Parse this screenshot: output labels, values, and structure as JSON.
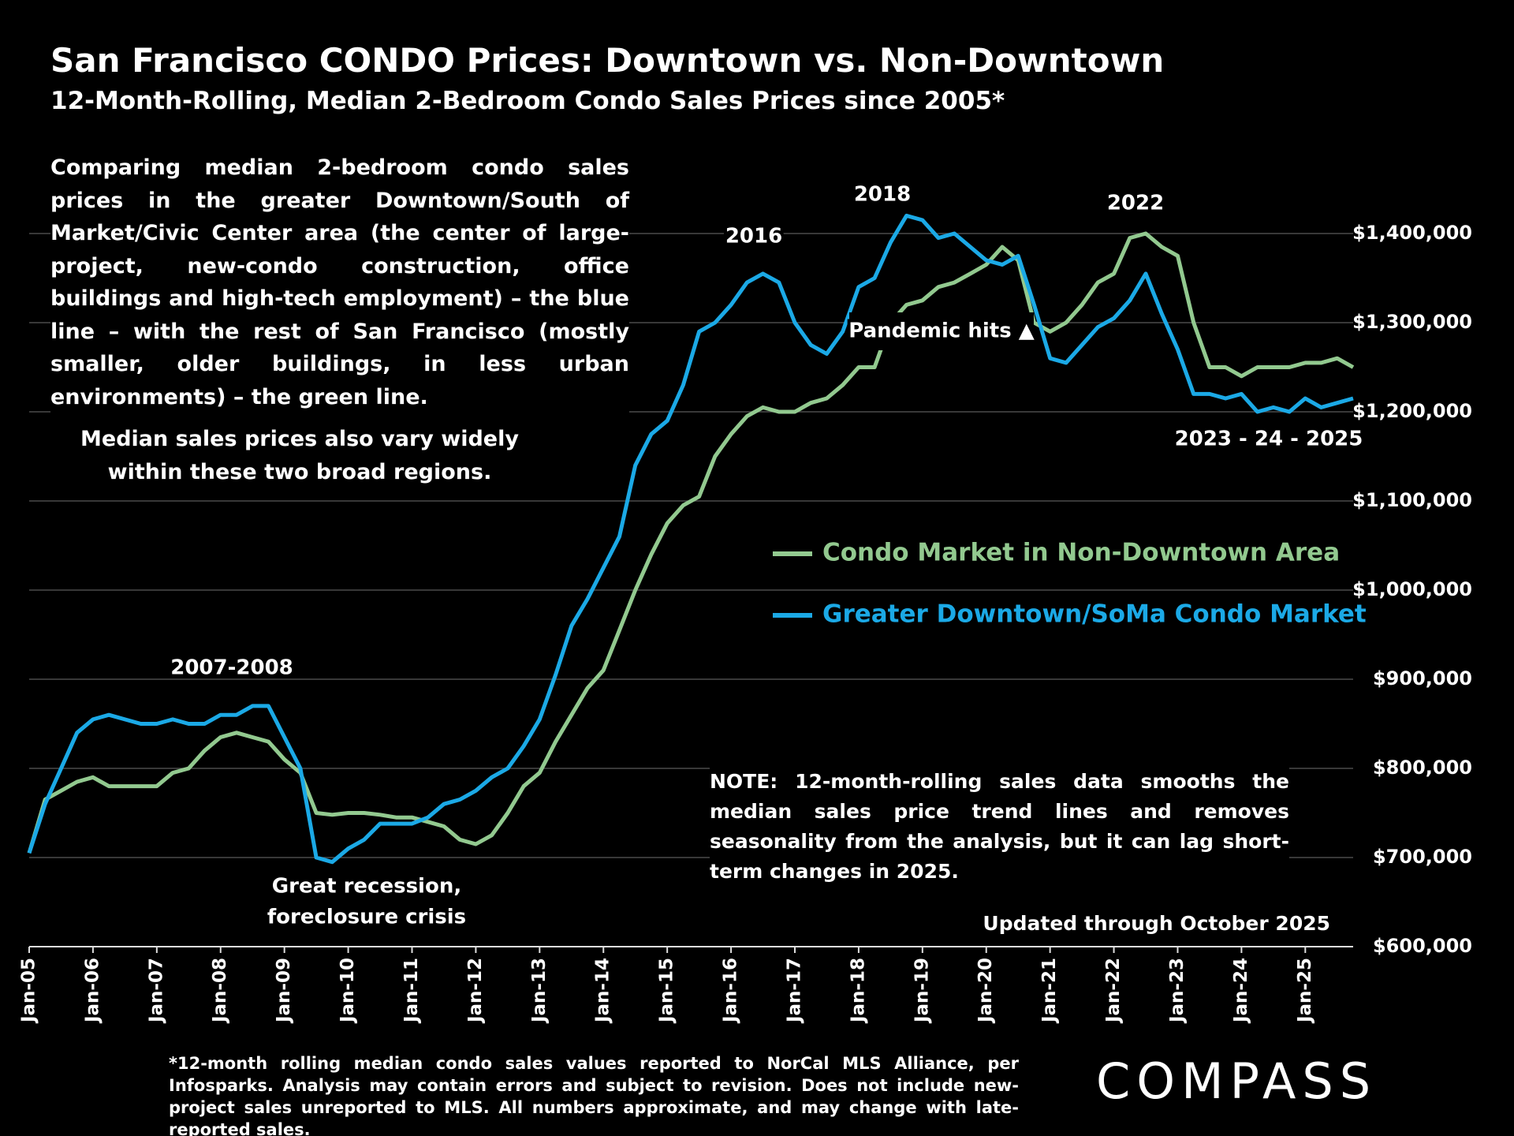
{
  "title": "San Francisco CONDO Prices: Downtown vs. Non-Downtown",
  "subtitle": "12-Month-Rolling, Median 2-Bedroom Condo Sales Prices since 2005*",
  "intro": "Comparing median 2-bedroom condo sales prices in the greater Downtown/South of Market/Civic Center area (the center of large-project, new-condo construction, office buildings and high-tech employment) – the blue line – with the rest of San Francisco (mostly smaller, older buildings, in less urban environments) – the green line.",
  "sub_note": "Median sales prices also vary widely within these two broad regions.",
  "note": "NOTE: 12-month-rolling sales data smooths the median sales price trend lines and removes seasonality from the analysis, but it can lag short-term changes in 2025.",
  "updated": "Updated through October  2025",
  "footnote": "*12-month rolling median condo sales values reported to NorCal MLS Alliance, per Infosparks. Analysis may contain errors and subject to revision. Does not include new-project sales unreported to MLS. All numbers approximate, and may change with late-reported sales.",
  "logo": "COMPASS",
  "chart_data": {
    "type": "line",
    "x": [
      "2005-01",
      "2005-04",
      "2005-07",
      "2005-10",
      "2006-01",
      "2006-04",
      "2006-07",
      "2006-10",
      "2007-01",
      "2007-04",
      "2007-07",
      "2007-10",
      "2008-01",
      "2008-04",
      "2008-07",
      "2008-10",
      "2009-01",
      "2009-04",
      "2009-07",
      "2009-10",
      "2010-01",
      "2010-04",
      "2010-07",
      "2010-10",
      "2011-01",
      "2011-04",
      "2011-07",
      "2011-10",
      "2012-01",
      "2012-04",
      "2012-07",
      "2012-10",
      "2013-01",
      "2013-04",
      "2013-07",
      "2013-10",
      "2014-01",
      "2014-04",
      "2014-07",
      "2014-10",
      "2015-01",
      "2015-04",
      "2015-07",
      "2015-10",
      "2016-01",
      "2016-04",
      "2016-07",
      "2016-10",
      "2017-01",
      "2017-04",
      "2017-07",
      "2017-10",
      "2018-01",
      "2018-04",
      "2018-07",
      "2018-10",
      "2019-01",
      "2019-04",
      "2019-07",
      "2019-10",
      "2020-01",
      "2020-04",
      "2020-07",
      "2020-10",
      "2021-01",
      "2021-04",
      "2021-07",
      "2021-10",
      "2022-01",
      "2022-04",
      "2022-07",
      "2022-10",
      "2023-01",
      "2023-04",
      "2023-07",
      "2023-10",
      "2024-01",
      "2024-04",
      "2024-07",
      "2024-10",
      "2025-01",
      "2025-04",
      "2025-07",
      "2025-10"
    ],
    "series": [
      {
        "name": "Condo Market in Non-Downtown Area",
        "color": "#92c98f",
        "values": [
          705000,
          765000,
          775000,
          785000,
          790000,
          780000,
          780000,
          780000,
          780000,
          795000,
          800000,
          820000,
          835000,
          840000,
          835000,
          830000,
          810000,
          795000,
          750000,
          748000,
          750000,
          750000,
          748000,
          745000,
          745000,
          740000,
          735000,
          720000,
          715000,
          725000,
          750000,
          780000,
          795000,
          830000,
          860000,
          890000,
          910000,
          955000,
          1000000,
          1040000,
          1075000,
          1095000,
          1105000,
          1150000,
          1175000,
          1195000,
          1205000,
          1200000,
          1200000,
          1210000,
          1215000,
          1230000,
          1250000,
          1250000,
          1300000,
          1320000,
          1325000,
          1340000,
          1345000,
          1355000,
          1365000,
          1385000,
          1370000,
          1300000,
          1290000,
          1300000,
          1320000,
          1345000,
          1355000,
          1395000,
          1400000,
          1385000,
          1375000,
          1300000,
          1250000,
          1250000,
          1240000,
          1250000,
          1250000,
          1250000,
          1255000,
          1255000,
          1260000,
          1250000
        ]
      },
      {
        "name": "Greater Downtown/SoMa Condo Market",
        "color": "#1ba9e6",
        "values": [
          705000,
          760000,
          800000,
          840000,
          855000,
          860000,
          855000,
          850000,
          850000,
          855000,
          850000,
          850000,
          860000,
          860000,
          870000,
          870000,
          835000,
          800000,
          700000,
          695000,
          710000,
          720000,
          738000,
          738000,
          738000,
          745000,
          760000,
          765000,
          775000,
          790000,
          800000,
          825000,
          855000,
          905000,
          960000,
          990000,
          1025000,
          1060000,
          1140000,
          1175000,
          1190000,
          1230000,
          1290000,
          1300000,
          1320000,
          1345000,
          1355000,
          1345000,
          1300000,
          1275000,
          1265000,
          1290000,
          1340000,
          1350000,
          1390000,
          1420000,
          1415000,
          1395000,
          1400000,
          1385000,
          1370000,
          1365000,
          1375000,
          1320000,
          1260000,
          1255000,
          1275000,
          1295000,
          1305000,
          1325000,
          1355000,
          1310000,
          1270000,
          1220000,
          1220000,
          1215000,
          1220000,
          1200000,
          1205000,
          1200000,
          1215000,
          1205000,
          1210000,
          1215000
        ]
      }
    ],
    "xlim": [
      "2005-01",
      "2025-10"
    ],
    "xticks": [
      {
        "value": "2005-01",
        "label": "Jan-05"
      },
      {
        "value": "2006-01",
        "label": "Jan-06"
      },
      {
        "value": "2007-01",
        "label": "Jan-07"
      },
      {
        "value": "2008-01",
        "label": "Jan-08"
      },
      {
        "value": "2009-01",
        "label": "Jan-09"
      },
      {
        "value": "2010-01",
        "label": "Jan-10"
      },
      {
        "value": "2011-01",
        "label": "Jan-11"
      },
      {
        "value": "2012-01",
        "label": "Jan-12"
      },
      {
        "value": "2013-01",
        "label": "Jan-13"
      },
      {
        "value": "2014-01",
        "label": "Jan-14"
      },
      {
        "value": "2015-01",
        "label": "Jan-15"
      },
      {
        "value": "2016-01",
        "label": "Jan-16"
      },
      {
        "value": "2017-01",
        "label": "Jan-17"
      },
      {
        "value": "2018-01",
        "label": "Jan-18"
      },
      {
        "value": "2019-01",
        "label": "Jan-19"
      },
      {
        "value": "2020-01",
        "label": "Jan-20"
      },
      {
        "value": "2021-01",
        "label": "Jan-21"
      },
      {
        "value": "2022-01",
        "label": "Jan-22"
      },
      {
        "value": "2023-01",
        "label": "Jan-23"
      },
      {
        "value": "2024-01",
        "label": "Jan-24"
      },
      {
        "value": "2025-01",
        "label": "Jan-25"
      }
    ],
    "ylim": [
      600000,
      1400000
    ],
    "yticks": [
      {
        "value": 600000,
        "label": "$600,000"
      },
      {
        "value": 700000,
        "label": "$700,000"
      },
      {
        "value": 800000,
        "label": "$800,000"
      },
      {
        "value": 900000,
        "label": "$900,000"
      },
      {
        "value": 1000000,
        "label": "$1,000,000"
      },
      {
        "value": 1100000,
        "label": "$1,100,000"
      },
      {
        "value": 1200000,
        "label": "$1,200,000"
      },
      {
        "value": 1300000,
        "label": "$1,300,000"
      },
      {
        "value": 1400000,
        "label": "$1,400,000"
      }
    ],
    "grid": true,
    "annotations": [
      "2007-2008",
      "Great recession,",
      "foreclosure crisis",
      "2016",
      "2018",
      "2022",
      "Pandemic hits ▲",
      "2023 - 24 - 2025"
    ]
  }
}
